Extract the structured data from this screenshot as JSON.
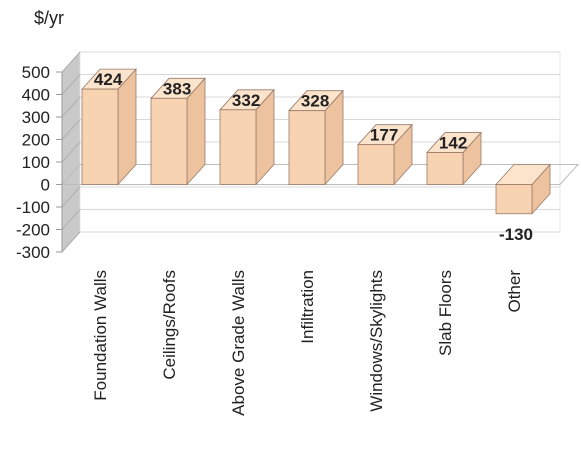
{
  "chart_data": {
    "type": "bar",
    "ylabel": "$/yr",
    "categories": [
      "Foundation Walls",
      "Ceilings/Roofs",
      "Above Grade Walls",
      "Infiltration",
      "Windows/Skylights",
      "Slab Floors",
      "Other"
    ],
    "values": [
      424,
      383,
      332,
      328,
      177,
      142,
      -130
    ],
    "value_labels": [
      "424",
      "383",
      "332",
      "328",
      "177",
      "142",
      "-130"
    ],
    "ylim": [
      -300,
      500
    ],
    "yticks": [
      "500",
      "400",
      "300",
      "200",
      "100",
      "0",
      "-100",
      "-200",
      "-300"
    ],
    "ytick_values": [
      500,
      400,
      300,
      200,
      100,
      0,
      -100,
      -200,
      -300
    ],
    "grid": true,
    "three_d": true,
    "colors": {
      "bar_front": "#f7d3b2",
      "bar_side": "#ecc29f",
      "bar_top": "#fbe3cc",
      "bar_edge": "#9a7a66",
      "wall": "#c9c9c9",
      "gridline": "#d8d8d8",
      "text": "#222222"
    }
  }
}
